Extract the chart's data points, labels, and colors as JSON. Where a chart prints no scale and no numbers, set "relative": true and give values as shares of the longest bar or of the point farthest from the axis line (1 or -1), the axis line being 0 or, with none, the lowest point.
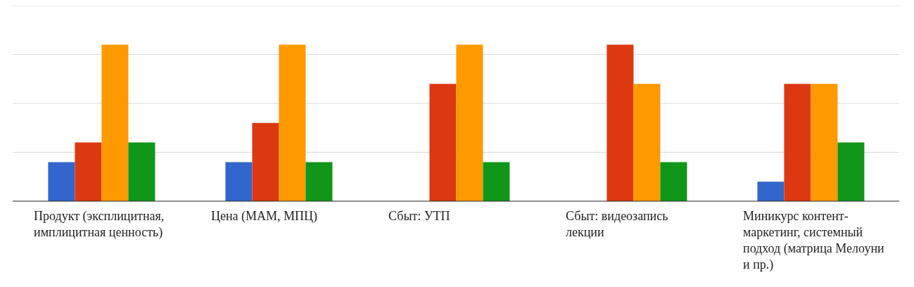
{
  "chart_data": {
    "type": "bar",
    "relative": true,
    "grid": "y",
    "categories": [
      "Продукт (эксплицитная, имплицитная ценность)",
      "Цена (МАМ, МПЦ)",
      "Сбыт: УТП",
      "Сбыт: видеозапись лекции",
      "Миникурс контент-маркетинг, системный подход (матрица Мелоуни и пр.)"
    ],
    "series": [
      {
        "color": "#3366cc",
        "values": [
          0.25,
          0.25,
          0,
          0,
          0.125
        ]
      },
      {
        "color": "#dc3912",
        "values": [
          0.375,
          0.5,
          0.75,
          1,
          0.75
        ]
      },
      {
        "color": "#ff9900",
        "values": [
          1,
          1,
          1,
          0.75,
          0.75
        ]
      },
      {
        "color": "#109618",
        "values": [
          0.375,
          0.25,
          0.25,
          0.25,
          0.375
        ]
      }
    ]
  }
}
